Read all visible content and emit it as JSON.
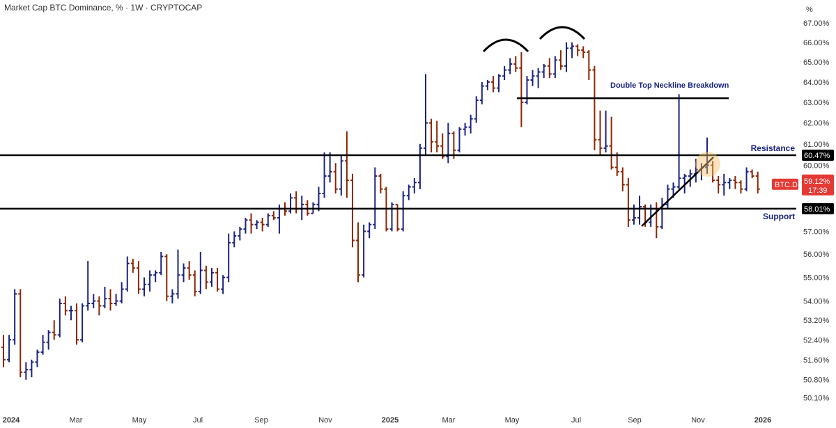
{
  "title": "Market Cap BTC Dominance, % · 1W · CRYPTOCAP",
  "unit_label": "%",
  "colors": {
    "up": "#1a237e",
    "down": "#8b2500",
    "level": "#000000",
    "annotation": "#1a237e",
    "badge_red": "#e53935"
  },
  "chart_data": {
    "type": "ohlc",
    "y_scale": "log",
    "ylim": [
      49.6,
      67.4
    ],
    "y_ticks": [
      "50.10%",
      "50.80%",
      "51.60%",
      "52.40%",
      "53.20%",
      "54.00%",
      "55.00%",
      "56.00%",
      "57.00%",
      "58.00%",
      "59.00%",
      "60.00%",
      "61.00%",
      "62.00%",
      "63.00%",
      "64.00%",
      "65.00%",
      "66.00%",
      "67.00%"
    ],
    "x_ticks": [
      {
        "label": "2024",
        "bold": true
      },
      {
        "label": "Mar",
        "bold": false
      },
      {
        "label": "May",
        "bold": false
      },
      {
        "label": "Jul",
        "bold": false
      },
      {
        "label": "Sep",
        "bold": false
      },
      {
        "label": "Nov",
        "bold": false
      },
      {
        "label": "2025",
        "bold": true
      },
      {
        "label": "Mar",
        "bold": false
      },
      {
        "label": "May",
        "bold": false
      },
      {
        "label": "Jul",
        "bold": false
      },
      {
        "label": "Sep",
        "bold": false
      },
      {
        "label": "Nov",
        "bold": false
      },
      {
        "label": "2026",
        "bold": true
      }
    ],
    "bars": [
      [
        52.1,
        52.6,
        51.3,
        51.6
      ],
      [
        51.6,
        52.6,
        51.5,
        52.4
      ],
      [
        52.4,
        54.5,
        52.2,
        54.3
      ],
      [
        54.3,
        54.5,
        50.9,
        51.1
      ],
      [
        51.1,
        51.5,
        50.8,
        51.2
      ],
      [
        51.2,
        51.6,
        50.9,
        51.5
      ],
      [
        51.5,
        52.0,
        51.3,
        51.9
      ],
      [
        51.9,
        52.6,
        51.8,
        52.3
      ],
      [
        52.3,
        52.8,
        52.0,
        52.7
      ],
      [
        52.7,
        53.2,
        52.4,
        52.6
      ],
      [
        52.6,
        54.1,
        52.5,
        53.9
      ],
      [
        53.9,
        54.2,
        53.4,
        53.6
      ],
      [
        53.6,
        53.8,
        53.2,
        53.6
      ],
      [
        53.6,
        53.9,
        52.2,
        52.4
      ],
      [
        52.4,
        53.9,
        52.3,
        53.8
      ],
      [
        53.8,
        55.7,
        53.6,
        53.9
      ],
      [
        53.9,
        54.3,
        53.7,
        54.0
      ],
      [
        54.0,
        54.2,
        53.4,
        53.8
      ],
      [
        53.8,
        54.6,
        53.7,
        54.1
      ],
      [
        54.1,
        54.5,
        53.6,
        53.9
      ],
      [
        53.9,
        54.3,
        53.8,
        54.0
      ],
      [
        54.0,
        54.8,
        53.9,
        54.5
      ],
      [
        54.5,
        55.9,
        54.4,
        55.6
      ],
      [
        55.6,
        55.8,
        55.2,
        55.4
      ],
      [
        55.4,
        55.7,
        54.3,
        54.5
      ],
      [
        54.5,
        55.0,
        54.2,
        54.7
      ],
      [
        54.7,
        55.3,
        54.4,
        55.1
      ],
      [
        55.1,
        55.3,
        54.8,
        55.2
      ],
      [
        55.2,
        56.1,
        55.1,
        55.9
      ],
      [
        55.9,
        56.0,
        54.0,
        54.2
      ],
      [
        54.2,
        54.5,
        53.9,
        54.3
      ],
      [
        54.3,
        56.2,
        54.1,
        55.1
      ],
      [
        55.1,
        55.6,
        54.8,
        55.4
      ],
      [
        55.4,
        55.7,
        54.9,
        55.1
      ],
      [
        55.1,
        55.3,
        54.2,
        54.4
      ],
      [
        54.4,
        56.1,
        54.3,
        55.3
      ],
      [
        55.3,
        55.5,
        54.5,
        54.8
      ],
      [
        54.8,
        55.4,
        54.6,
        55.2
      ],
      [
        55.2,
        55.4,
        54.4,
        54.5
      ],
      [
        54.5,
        55.1,
        54.3,
        55.0
      ],
      [
        55.0,
        56.9,
        54.8,
        56.5
      ],
      [
        56.5,
        57.0,
        56.3,
        56.8
      ],
      [
        56.8,
        57.2,
        56.6,
        57.1
      ],
      [
        57.1,
        57.6,
        56.9,
        57.5
      ],
      [
        57.5,
        57.8,
        56.9,
        57.3
      ],
      [
        57.3,
        57.5,
        57.1,
        57.4
      ],
      [
        57.4,
        57.6,
        57.0,
        57.3
      ],
      [
        57.3,
        57.8,
        57.2,
        57.7
      ],
      [
        57.7,
        57.9,
        57.5,
        57.6
      ],
      [
        57.6,
        58.2,
        56.9,
        58.0
      ],
      [
        58.0,
        58.3,
        57.7,
        57.9
      ],
      [
        57.9,
        58.7,
        57.8,
        58.5
      ],
      [
        58.5,
        58.8,
        57.8,
        58.0
      ],
      [
        58.0,
        58.6,
        57.5,
        58.2
      ],
      [
        58.2,
        58.4,
        57.7,
        57.8
      ],
      [
        57.8,
        58.3,
        57.8,
        58.2
      ],
      [
        58.2,
        59.0,
        57.9,
        58.7
      ],
      [
        58.7,
        60.6,
        58.5,
        59.5
      ],
      [
        59.5,
        60.6,
        59.2,
        59.7
      ],
      [
        59.7,
        60.1,
        58.7,
        58.9
      ],
      [
        58.9,
        60.5,
        58.6,
        60.2
      ],
      [
        60.2,
        61.6,
        58.5,
        59.3
      ],
      [
        59.3,
        59.6,
        56.3,
        56.6
      ],
      [
        56.6,
        57.4,
        54.8,
        55.1
      ],
      [
        55.1,
        57.3,
        55.0,
        57.0
      ],
      [
        57.0,
        57.4,
        56.7,
        57.3
      ],
      [
        57.3,
        59.9,
        57.1,
        59.5
      ],
      [
        59.5,
        59.6,
        58.7,
        58.9
      ],
      [
        58.9,
        59.0,
        57.0,
        57.1
      ],
      [
        57.1,
        58.3,
        57.0,
        58.2
      ],
      [
        58.2,
        58.2,
        57.0,
        57.1
      ],
      [
        57.1,
        58.8,
        57.0,
        58.6
      ],
      [
        58.6,
        59.1,
        58.4,
        59.0
      ],
      [
        59.0,
        59.4,
        58.7,
        59.2
      ],
      [
        59.2,
        61.0,
        58.9,
        60.8
      ],
      [
        60.8,
        64.4,
        60.5,
        62.0
      ],
      [
        62.0,
        62.2,
        60.6,
        61.1
      ],
      [
        61.1,
        62.1,
        60.6,
        60.9
      ],
      [
        60.9,
        61.5,
        60.3,
        60.4
      ],
      [
        60.4,
        62.0,
        60.1,
        61.5
      ],
      [
        61.5,
        61.6,
        60.3,
        60.7
      ],
      [
        60.7,
        61.8,
        60.6,
        61.7
      ],
      [
        61.7,
        62.0,
        61.4,
        61.8
      ],
      [
        61.8,
        62.4,
        61.5,
        62.2
      ],
      [
        62.2,
        63.3,
        62.0,
        63.1
      ],
      [
        63.1,
        64.0,
        62.9,
        63.8
      ],
      [
        63.8,
        64.1,
        63.6,
        64.0
      ],
      [
        64.0,
        64.3,
        63.5,
        63.7
      ],
      [
        63.7,
        64.4,
        63.5,
        64.3
      ],
      [
        64.3,
        64.8,
        64.1,
        64.6
      ],
      [
        64.6,
        65.2,
        64.4,
        64.9
      ],
      [
        64.9,
        65.3,
        64.5,
        64.7
      ],
      [
        64.7,
        65.5,
        61.8,
        63.0
      ],
      [
        63.0,
        64.3,
        62.9,
        64.1
      ],
      [
        64.1,
        64.6,
        63.8,
        64.3
      ],
      [
        64.3,
        64.7,
        63.7,
        64.5
      ],
      [
        64.5,
        64.9,
        64.2,
        64.8
      ],
      [
        64.8,
        65.2,
        64.2,
        64.4
      ],
      [
        64.4,
        65.3,
        64.2,
        65.1
      ],
      [
        65.1,
        65.6,
        64.6,
        64.8
      ],
      [
        64.8,
        66.0,
        64.5,
        65.7
      ],
      [
        65.7,
        66.0,
        65.2,
        65.8
      ],
      [
        65.8,
        65.9,
        65.3,
        65.6
      ],
      [
        65.6,
        65.8,
        65.2,
        65.5
      ],
      [
        65.5,
        65.6,
        64.1,
        64.6
      ],
      [
        64.6,
        64.8,
        60.7,
        61.2
      ],
      [
        61.2,
        62.6,
        60.5,
        60.8
      ],
      [
        60.8,
        62.6,
        60.6,
        60.9
      ],
      [
        60.9,
        62.3,
        59.8,
        59.9
      ],
      [
        59.9,
        60.6,
        59.5,
        59.7
      ],
      [
        59.7,
        59.9,
        58.8,
        59.1
      ],
      [
        59.1,
        59.4,
        57.2,
        57.5
      ],
      [
        57.5,
        58.2,
        57.3,
        57.6
      ],
      [
        57.6,
        58.6,
        57.3,
        58.1
      ],
      [
        58.1,
        58.2,
        57.2,
        57.4
      ],
      [
        57.4,
        58.2,
        57.2,
        58.0
      ],
      [
        58.0,
        58.3,
        56.7,
        57.2
      ],
      [
        57.2,
        58.5,
        57.1,
        58.2
      ],
      [
        58.2,
        59.1,
        58.0,
        58.9
      ],
      [
        58.9,
        59.2,
        58.5,
        59.0
      ],
      [
        59.0,
        63.4,
        58.9,
        59.4
      ],
      [
        59.4,
        59.6,
        58.7,
        59.5
      ],
      [
        59.5,
        59.8,
        59.0,
        59.6
      ],
      [
        59.6,
        60.3,
        59.2,
        59.8
      ],
      [
        59.8,
        60.1,
        59.3,
        59.9
      ],
      [
        59.9,
        61.3,
        59.6,
        60.0
      ],
      [
        60.0,
        60.2,
        59.2,
        59.3
      ],
      [
        59.3,
        59.5,
        58.7,
        59.1
      ],
      [
        59.1,
        59.6,
        58.6,
        59.2
      ],
      [
        59.2,
        59.4,
        58.9,
        59.3
      ],
      [
        59.3,
        59.5,
        58.9,
        59.2
      ],
      [
        59.2,
        59.3,
        58.7,
        58.9
      ],
      [
        58.9,
        59.9,
        58.8,
        59.7
      ],
      [
        59.7,
        59.8,
        59.4,
        59.5
      ],
      [
        59.5,
        59.7,
        58.7,
        58.9
      ]
    ]
  },
  "levels": {
    "resistance": {
      "value": 60.47,
      "label": "Resistance",
      "badge": "60.47%"
    },
    "support": {
      "value": 58.01,
      "label": "Support",
      "badge": "58.01%"
    },
    "neckline": {
      "value": 63.2,
      "label": "Double Top Neckline Breakdown"
    }
  },
  "current": {
    "symbol": "BTC.D",
    "value_label": "59.12%",
    "countdown": "17:39",
    "value": 59.12
  }
}
